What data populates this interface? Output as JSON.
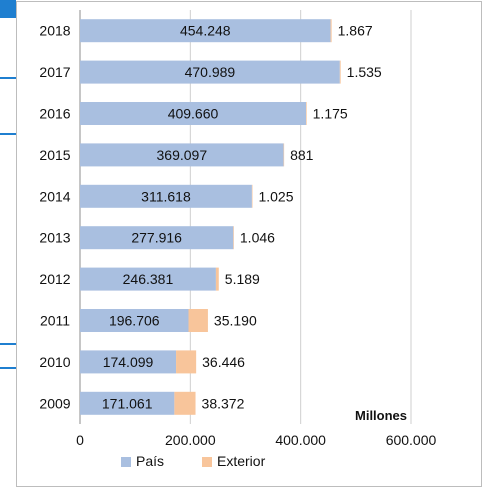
{
  "chart_data": {
    "type": "bar",
    "orientation": "horizontal",
    "stacked": true,
    "categories": [
      "2018",
      "2017",
      "2016",
      "2015",
      "2014",
      "2013",
      "2012",
      "2011",
      "2010",
      "2009"
    ],
    "series": [
      {
        "name": "País",
        "color": "#a9bfe0",
        "values": [
          454248,
          470989,
          409660,
          369097,
          311618,
          277916,
          246381,
          196706,
          174099,
          171061
        ],
        "labels": [
          "454.248",
          "470.989",
          "409.660",
          "369.097",
          "311.618",
          "277.916",
          "246.381",
          "196.706",
          "174.099",
          "171.061"
        ]
      },
      {
        "name": "Exterior",
        "color": "#f8c59b",
        "values": [
          1867,
          1535,
          1175,
          881,
          1025,
          1046,
          5189,
          35190,
          36446,
          38372
        ],
        "labels": [
          "1.867",
          "1.535",
          "1.175",
          "881",
          "1.025",
          "1.046",
          "5.189",
          "35.190",
          "36.446",
          "38.372"
        ]
      }
    ],
    "xlim": [
      0,
      600000
    ],
    "xticks": [
      0,
      200000,
      400000,
      600000
    ],
    "xtick_labels": [
      "0",
      "200.000",
      "400.000",
      "600.000"
    ],
    "unit_label": "Millones",
    "grid": true,
    "legend_position": "bottom"
  }
}
